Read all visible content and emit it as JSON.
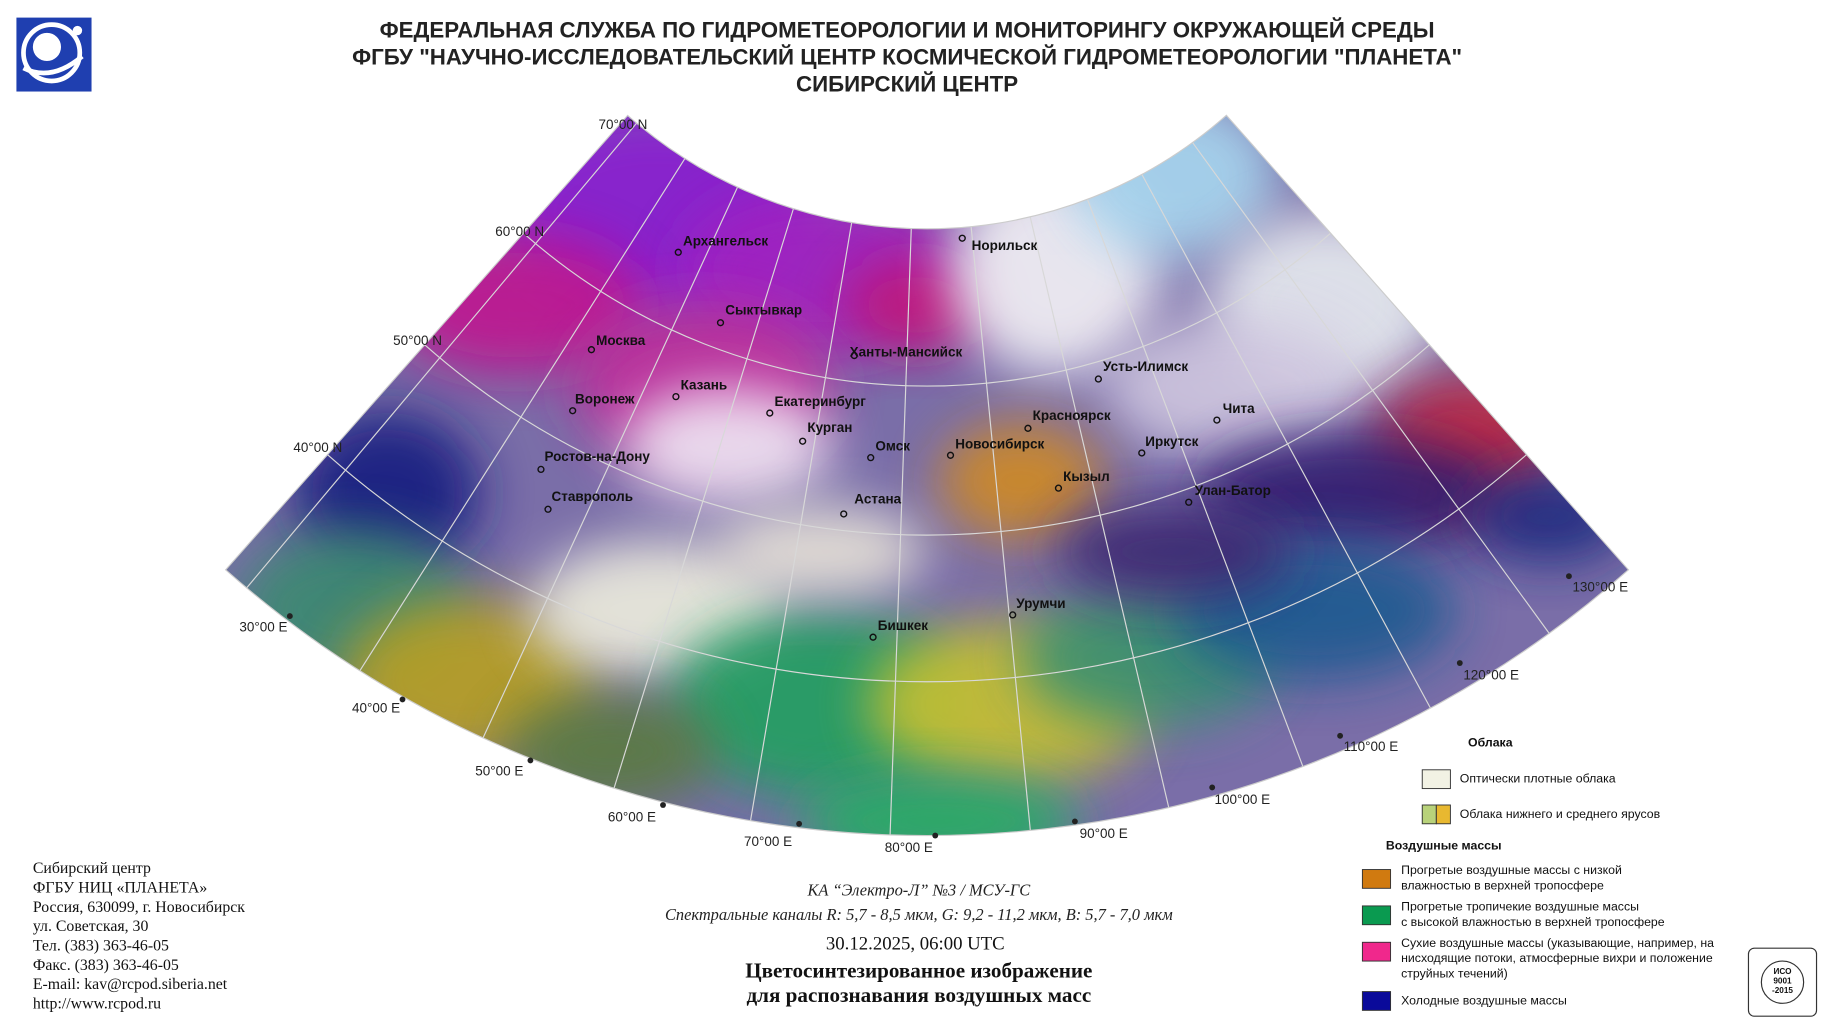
{
  "header": {
    "lines": [
      "ФЕДЕРАЛЬНАЯ СЛУЖБА ПО ГИДРОМЕТЕОРОЛОГИИ И МОНИТОРИНГУ ОКРУЖАЮЩЕЙ СРЕДЫ",
      "ФГБУ \"НАУЧНО-ИССЛЕДОВАТЕЛЬСКИЙ ЦЕНТР КОСМИЧЕСКОЙ ГИДРОМЕТЕОРОЛОГИИ \"ПЛАНЕТА\"",
      "СИБИРСКИЙ ЦЕНТР"
    ]
  },
  "map": {
    "latitude_labels": [
      "70°00 N",
      "60°00 N",
      "50°00 N",
      "40°00 N"
    ],
    "longitude_labels": [
      "30°00 E",
      "40°00 E",
      "50°00 E",
      "60°00 E",
      "70°00 E",
      "80°00 E",
      "90°00 E",
      "100°00 E",
      "110°00 E",
      "120°00 E",
      "130°00 E"
    ],
    "cities": [
      "Архангельск",
      "Норильск",
      "Сыктывкар",
      "Москва",
      "Ханты-Мансийск",
      "Казань",
      "Усть-Илимск",
      "Воронеж",
      "Екатеринбург",
      "Красноярск",
      "Чита",
      "Курган",
      "Омск",
      "Новосибирск",
      "Иркутск",
      "Ростов-на-Дону",
      "Кызыл",
      "Ставрополь",
      "Астана",
      "Улан-Батор",
      "Урумчи",
      "Бишкек"
    ]
  },
  "legend": {
    "clouds": {
      "title": "Облака",
      "items": [
        {
          "label": "Оптически плотные облака",
          "colors": [
            "#f2f2e4"
          ]
        },
        {
          "label": "Облака нижнего и среднего ярусов",
          "colors": [
            "#b8d27a",
            "#e8b830"
          ]
        }
      ]
    },
    "air_masses": {
      "title": "Воздушные массы",
      "items": [
        {
          "lines": [
            "Прогретые воздушные массы с низкой",
            "влажностью в верхней тропосфере"
          ],
          "color": "#d07a10"
        },
        {
          "lines": [
            "Прогретые тропичекие воздушные массы",
            "с высокой влажностью в верхней тропосфере"
          ],
          "color": "#0a9a50"
        },
        {
          "lines": [
            "Сухие воздушные массы (указывающие, например, на",
            "нисходящие потоки, атмосферные вихри и положение",
            "струйных течений)"
          ],
          "color": "#f0288c"
        },
        {
          "lines": [
            "Холодные воздушные массы"
          ],
          "color": "#0a0a9a"
        }
      ]
    }
  },
  "footer": {
    "contact": [
      "Сибирский центр",
      "ФГБУ НИЦ «ПЛАНЕТА»",
      "Россия, 630099, г. Новосибирск",
      "ул. Советская, 30",
      "Тел. (383) 363-46-05",
      "Факс. (383) 363-46-05",
      "E-mail: kav@rcpod.siberia.net",
      "http://www.rcpod.ru"
    ]
  },
  "caption": {
    "satellite": "КА “Электро-Л” №3 / МСУ-ГС",
    "channels": "Спектральные каналы R: 5,7 - 8,5 мкм, G: 9,2 - 11,2 мкм, B: 5,7 - 7,0 мкм",
    "datetime": "30.12.2025, 06:00 UTC",
    "title_lines": [
      "Цветосинтезированное изображение",
      "для распознавания воздушных масс"
    ]
  },
  "badge": {
    "lines": [
      "ИСО",
      "9001",
      "-2015"
    ]
  }
}
